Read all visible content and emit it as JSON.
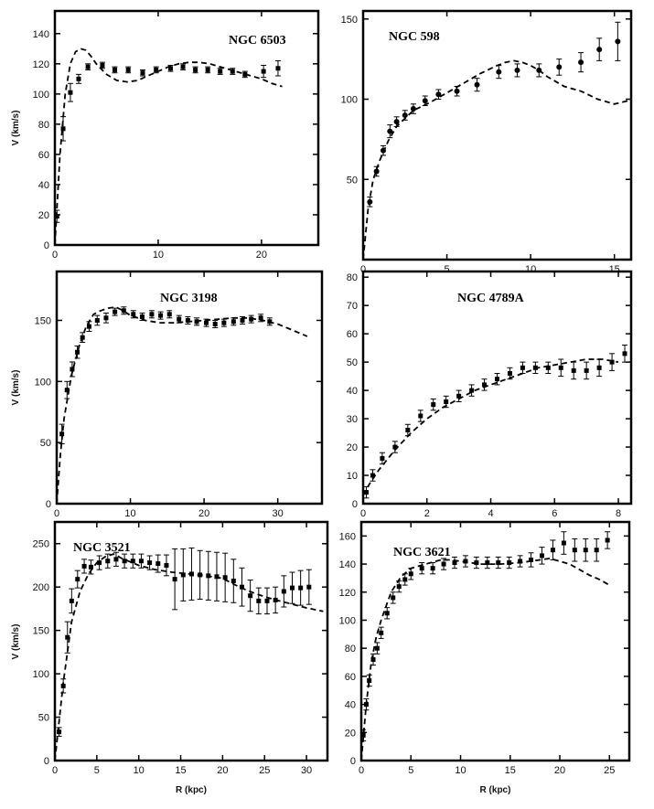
{
  "chart_data": [
    {
      "type": "scatter",
      "title": "NGC 6503",
      "ylabel": "V (km/s)",
      "xlabel": "",
      "xlim": [
        0,
        25.5
      ],
      "ylim": [
        0,
        155
      ],
      "xticks": [
        0,
        10,
        20
      ],
      "yticks": [
        0,
        20,
        40,
        60,
        80,
        100,
        120,
        140
      ],
      "marker": "square",
      "series": [
        {
          "kind": "points",
          "x": [
            0.2,
            0.8,
            1.5,
            2.3,
            3.2,
            4.6,
            5.8,
            7.1,
            8.5,
            9.8,
            11.2,
            12.4,
            13.6,
            14.8,
            16.0,
            17.2,
            18.4,
            20.2,
            21.6
          ],
          "y": [
            19,
            77,
            101,
            110,
            118,
            119,
            116,
            116,
            114,
            116,
            117,
            118,
            116,
            116,
            115,
            115,
            113,
            115,
            117
          ],
          "err": [
            4,
            8,
            6,
            3,
            2,
            2,
            2,
            2,
            2,
            2,
            2,
            2,
            2,
            2,
            2,
            2,
            2,
            4,
            5
          ]
        },
        {
          "kind": "model",
          "x": [
            0,
            0.5,
            1,
            1.5,
            2,
            2.5,
            3,
            3.5,
            4,
            5,
            6,
            7,
            8,
            9,
            10,
            11,
            12,
            13,
            14,
            15,
            16,
            17,
            18,
            19,
            20,
            21,
            22
          ],
          "y": [
            0,
            60,
            100,
            120,
            128,
            130,
            129,
            125,
            120,
            113,
            109,
            108,
            109,
            112,
            115,
            118,
            120,
            121,
            121,
            120,
            118,
            116,
            114,
            112,
            110,
            107,
            105
          ]
        }
      ]
    },
    {
      "type": "scatter",
      "title": "NGC 598",
      "ylabel": "",
      "xlabel": "",
      "xlim": [
        0,
        16
      ],
      "ylim": [
        0,
        155
      ],
      "xticks": [
        0,
        5,
        10,
        15
      ],
      "yticks": [
        50,
        100,
        150
      ],
      "marker": "circle",
      "series": [
        {
          "kind": "points",
          "x": [
            0.4,
            0.8,
            1.2,
            1.6,
            2.0,
            2.5,
            3.0,
            3.7,
            4.5,
            5.6,
            6.8,
            8.1,
            9.2,
            10.5,
            11.7,
            13.0,
            14.1,
            15.2
          ],
          "y": [
            36,
            55,
            68,
            80,
            86,
            90,
            94,
            99,
            103,
            105,
            109,
            117,
            118,
            118,
            120,
            123,
            131,
            136
          ],
          "err": [
            3,
            3,
            3,
            4,
            3,
            3,
            3,
            3,
            3,
            3,
            4,
            4,
            4,
            4,
            5,
            6,
            7,
            12
          ]
        },
        {
          "kind": "model",
          "x": [
            0,
            0.3,
            0.6,
            1,
            1.5,
            2,
            3,
            4,
            5,
            6,
            7,
            8,
            8.5,
            9,
            9.5,
            10,
            10.5,
            11,
            12,
            13,
            14,
            15,
            15.8
          ],
          "y": [
            0,
            32,
            50,
            62,
            74,
            83,
            93,
            98,
            104,
            110,
            116,
            121,
            123,
            124,
            123,
            121,
            118,
            114,
            108,
            105,
            100,
            97,
            99
          ]
        }
      ]
    },
    {
      "type": "scatter",
      "title": "NGC 3198",
      "ylabel": "V (km/s)",
      "xlabel": "",
      "xlim": [
        0,
        36
      ],
      "ylim": [
        0,
        190
      ],
      "xticks": [
        0,
        10,
        20,
        30
      ],
      "yticks": [
        0,
        50,
        100,
        150
      ],
      "marker": "square",
      "series": [
        {
          "kind": "points",
          "x": [
            0.7,
            1.4,
            2.1,
            2.8,
            3.5,
            4.4,
            5.5,
            6.7,
            7.9,
            9.1,
            10.4,
            11.6,
            12.9,
            14.1,
            15.3,
            16.6,
            17.8,
            19.0,
            20.3,
            21.5,
            22.7,
            24.0,
            25.2,
            26.4,
            27.7,
            28.9
          ],
          "y": [
            57,
            93,
            110,
            124,
            136,
            145,
            150,
            152,
            157,
            158,
            155,
            153,
            155,
            154,
            155,
            151,
            150,
            149,
            148,
            147,
            148,
            149,
            150,
            151,
            152,
            149
          ],
          "err": [
            8,
            7,
            6,
            5,
            4,
            4,
            4,
            4,
            3,
            3,
            3,
            3,
            3,
            3,
            3,
            3,
            3,
            3,
            3,
            3,
            3,
            3,
            3,
            3,
            3,
            3
          ]
        },
        {
          "kind": "model",
          "x": [
            0,
            0.5,
            1,
            2,
            3,
            4,
            5,
            6,
            7,
            8,
            9,
            10,
            12,
            14,
            16,
            18,
            20,
            22,
            24,
            26,
            28,
            30,
            32,
            34
          ],
          "y": [
            0,
            40,
            70,
            105,
            128,
            145,
            155,
            158,
            160,
            161,
            158,
            154,
            150,
            148,
            148,
            149,
            150,
            151,
            152,
            152,
            150,
            147,
            142,
            137
          ]
        }
      ]
    },
    {
      "type": "scatter",
      "title": "NGC 4789A",
      "ylabel": "",
      "xlabel": "",
      "xlim": [
        0,
        8.4
      ],
      "ylim": [
        0,
        82
      ],
      "xticks": [
        0,
        2,
        4,
        6,
        8
      ],
      "yticks": [
        0,
        10,
        20,
        30,
        40,
        50,
        60,
        70,
        80
      ],
      "marker": "square",
      "series": [
        {
          "kind": "points",
          "x": [
            0.1,
            0.3,
            0.6,
            1.0,
            1.4,
            1.8,
            2.2,
            2.6,
            3.0,
            3.4,
            3.8,
            4.2,
            4.6,
            5.0,
            5.4,
            5.8,
            6.2,
            6.6,
            7.0,
            7.4,
            7.8,
            8.2
          ],
          "y": [
            4,
            10,
            16,
            20,
            26,
            31,
            35,
            36,
            38,
            40,
            42,
            44,
            46,
            48,
            48,
            48,
            48,
            47,
            47,
            48,
            50,
            53
          ],
          "err": [
            2,
            2,
            2,
            2,
            2,
            2,
            2,
            2,
            2,
            2,
            2,
            2,
            2,
            2,
            2,
            2,
            3,
            3,
            3,
            3,
            3,
            3
          ]
        },
        {
          "kind": "model",
          "x": [
            0,
            0.2,
            0.5,
            1,
            1.5,
            2,
            2.5,
            3,
            3.5,
            4,
            4.5,
            5,
            5.5,
            6,
            6.5,
            7,
            7.5,
            8
          ],
          "y": [
            3,
            7,
            12,
            19,
            25,
            30,
            34,
            37,
            40,
            42,
            44,
            46,
            48,
            49,
            50,
            51,
            51,
            50
          ]
        }
      ]
    },
    {
      "type": "scatter",
      "title": "NGC 3521",
      "ylabel": "V (km/s)",
      "xlabel": "R (kpc)",
      "xlim": [
        0,
        32.5
      ],
      "ylim": [
        0,
        275
      ],
      "xticks": [
        0,
        5,
        10,
        15,
        20,
        25,
        30
      ],
      "yticks": [
        0,
        50,
        100,
        150,
        200,
        250
      ],
      "marker": "square",
      "series": [
        {
          "kind": "points",
          "x": [
            0.5,
            1.0,
            1.5,
            2.0,
            2.7,
            3.5,
            4.3,
            5.3,
            6.3,
            7.3,
            8.3,
            9.3,
            10.3,
            11.3,
            12.3,
            13.3,
            14.3,
            15.3,
            16.3,
            17.3,
            18.3,
            19.3,
            20.3,
            21.3,
            22.3,
            23.3,
            24.3,
            25.3,
            26.3,
            27.3,
            28.3,
            29.3,
            30.3
          ],
          "y": [
            33,
            86,
            142,
            184,
            209,
            224,
            223,
            228,
            230,
            232,
            230,
            230,
            230,
            228,
            227,
            225,
            209,
            214,
            215,
            214,
            213,
            212,
            211,
            207,
            200,
            190,
            184,
            184,
            185,
            195,
            199,
            199,
            200
          ],
          "err": [
            5,
            8,
            18,
            14,
            10,
            8,
            8,
            8,
            8,
            8,
            8,
            8,
            8,
            8,
            10,
            12,
            35,
            30,
            30,
            28,
            28,
            28,
            28,
            25,
            22,
            18,
            15,
            15,
            15,
            18,
            18,
            20,
            20
          ]
        },
        {
          "kind": "model",
          "x": [
            0,
            1,
            2,
            3,
            4,
            5,
            6,
            7,
            8,
            10,
            12,
            14,
            16,
            18,
            20,
            22,
            24,
            26,
            28,
            30,
            32
          ],
          "y": [
            0,
            90,
            160,
            195,
            215,
            228,
            235,
            238,
            233,
            225,
            220,
            217,
            215,
            213,
            210,
            200,
            192,
            186,
            181,
            176,
            172
          ]
        }
      ]
    },
    {
      "type": "scatter",
      "title": "NGC 3621",
      "ylabel": "",
      "xlabel": "R (kpc)",
      "xlim": [
        0,
        27
      ],
      "ylim": [
        0,
        170
      ],
      "xticks": [
        0,
        5,
        10,
        15,
        20,
        25
      ],
      "yticks": [
        0,
        20,
        40,
        60,
        80,
        100,
        120,
        140,
        160
      ],
      "marker": "square",
      "series": [
        {
          "kind": "points",
          "x": [
            0.2,
            0.5,
            0.8,
            1.2,
            1.6,
            2.0,
            2.6,
            3.2,
            3.8,
            4.4,
            5.0,
            6.1,
            7.2,
            8.3,
            9.4,
            10.5,
            11.6,
            12.7,
            13.8,
            14.9,
            16.0,
            17.1,
            18.2,
            19.3,
            20.4,
            21.5,
            22.6,
            23.7,
            24.8
          ],
          "y": [
            18,
            40,
            57,
            72,
            80,
            91,
            105,
            116,
            124,
            129,
            133,
            137,
            137,
            140,
            141,
            142,
            141,
            141,
            141,
            141,
            142,
            143,
            146,
            150,
            155,
            150,
            150,
            150,
            157
          ],
          "err": [
            4,
            4,
            4,
            4,
            4,
            4,
            4,
            4,
            4,
            4,
            4,
            4,
            4,
            4,
            4,
            4,
            4,
            4,
            4,
            4,
            4,
            5,
            6,
            7,
            8,
            8,
            8,
            8,
            6
          ]
        },
        {
          "kind": "model",
          "x": [
            0,
            0.5,
            1,
            1.5,
            2,
            2.5,
            3,
            4,
            5,
            6,
            7,
            8,
            9,
            10,
            12,
            14,
            16,
            18,
            19,
            20,
            21,
            22,
            23,
            24,
            25
          ],
          "y": [
            0,
            40,
            70,
            88,
            100,
            110,
            120,
            131,
            137,
            139,
            141,
            143,
            143,
            142,
            140,
            140,
            141,
            143,
            144,
            142,
            140,
            136,
            132,
            129,
            125
          ]
        }
      ]
    }
  ]
}
